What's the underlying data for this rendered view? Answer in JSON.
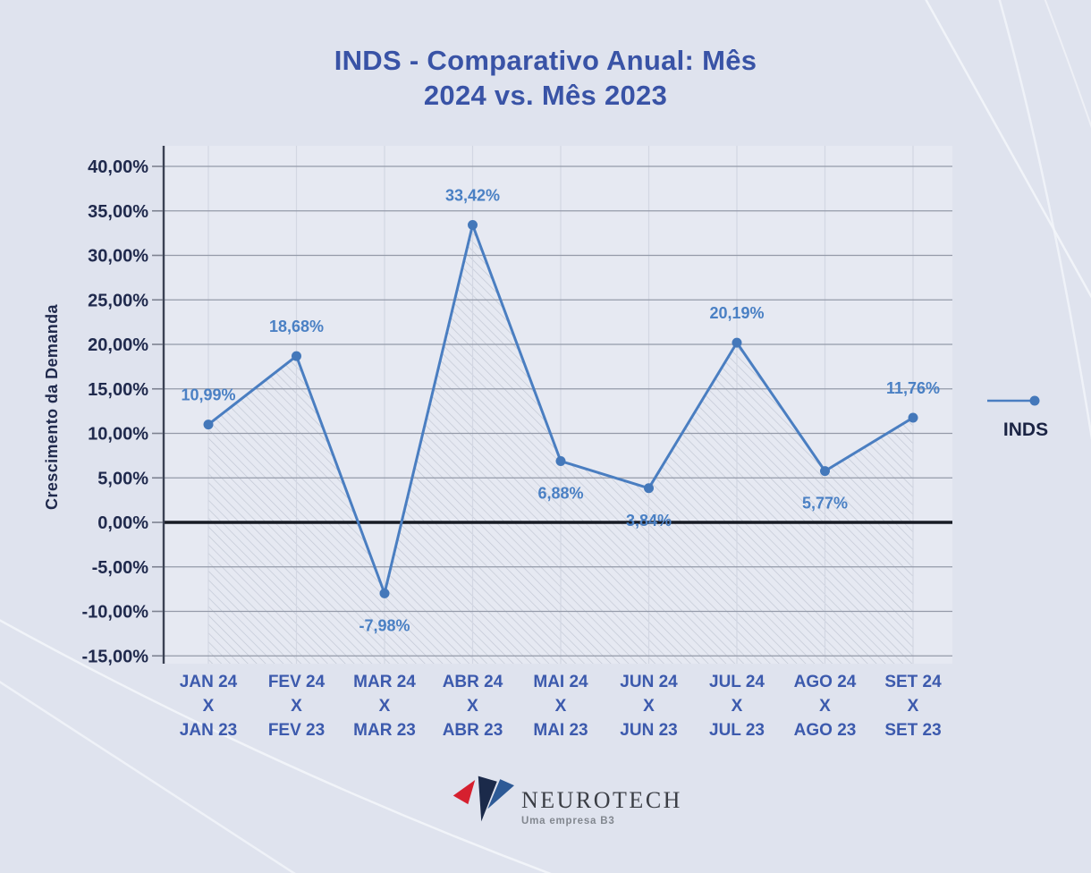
{
  "header": {
    "title_line1": "INDS - Comparativo Anual: Mês",
    "title_line2": "2024 vs. Mês 2023"
  },
  "chart_data": {
    "type": "line",
    "title": "INDS - Comparativo Anual: Mês 2024 vs. Mês 2023",
    "xlabel": "",
    "ylabel": "Crescimento da Demanda",
    "ylim": [
      -15,
      40
    ],
    "grid": true,
    "zero_line": true,
    "categories": [
      [
        "JAN 24",
        "X",
        "JAN 23"
      ],
      [
        "FEV 24",
        "X",
        "FEV 23"
      ],
      [
        "MAR 24",
        "X",
        "MAR 23"
      ],
      [
        "ABR 24",
        "X",
        "ABR 23"
      ],
      [
        "MAI 24",
        "X",
        "MAI 23"
      ],
      [
        "JUN 24",
        "X",
        "JUN 23"
      ],
      [
        "JUL 24",
        "X",
        "JUL 23"
      ],
      [
        "AGO 24",
        "X",
        "AGO 23"
      ],
      [
        "SET 24",
        "X",
        "SET 23"
      ]
    ],
    "series": [
      {
        "name": "INDS",
        "values": [
          10.99,
          18.68,
          -7.98,
          33.42,
          6.88,
          3.84,
          20.19,
          5.77,
          11.76
        ]
      }
    ],
    "point_labels": [
      "10,99%",
      "18,68%",
      "-7,98%",
      "33,42%",
      "6,88%",
      "3,84%",
      "20,19%",
      "5,77%",
      "11,76%"
    ],
    "label_positions": [
      "above",
      "above",
      "below",
      "above",
      "below",
      "below",
      "above",
      "below",
      "above"
    ],
    "y_ticks": [
      {
        "value": 40,
        "label": "40,00%"
      },
      {
        "value": 35,
        "label": "35,00%"
      },
      {
        "value": 30,
        "label": "30,00%"
      },
      {
        "value": 25,
        "label": "25,00%"
      },
      {
        "value": 20,
        "label": "20,00%"
      },
      {
        "value": 15,
        "label": "15,00%"
      },
      {
        "value": 10,
        "label": "10,00%"
      },
      {
        "value": 5,
        "label": "5,00%"
      },
      {
        "value": 0,
        "label": "0,00%"
      },
      {
        "value": -5,
        "label": "-5,00%"
      },
      {
        "value": -10,
        "label": "-10,00%"
      },
      {
        "value": -15,
        "label": "-15,00%"
      }
    ],
    "legend": {
      "label": "INDS",
      "position": "right"
    },
    "colors": {
      "line": "#4a7ec1",
      "marker": "#4478ba",
      "data_label": "#4a80c4",
      "title": "#3953a6",
      "axis_tick_text": "#202a4d",
      "x_tick_text": "#3c5aad",
      "zero_line": "#171b24",
      "gridline": "#949aa9",
      "page_background": "#dfe3ee",
      "plot_background": "#e6e9f2"
    }
  },
  "footer": {
    "brand": "NEUROTECH",
    "tagline": "Uma empresa B3"
  }
}
